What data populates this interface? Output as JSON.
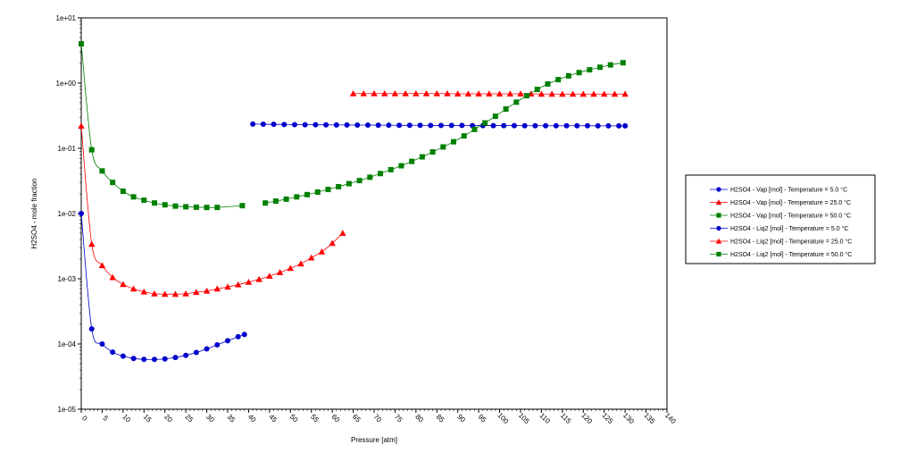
{
  "chart_data": {
    "type": "line",
    "xlabel": "Pressure [atm]",
    "ylabel": "H2SO4 - mole fraction",
    "yscale": "log",
    "xlim": [
      0,
      140
    ],
    "ylim": [
      1e-05,
      10
    ],
    "x_ticks": [
      "0",
      "5",
      "10",
      "15",
      "20",
      "25",
      "30",
      "35",
      "40",
      "45",
      "50",
      "55",
      "60",
      "65",
      "70",
      "75",
      "80",
      "85",
      "90",
      "95",
      "100",
      "105",
      "110",
      "115",
      "120",
      "125",
      "130",
      "135",
      "140"
    ],
    "y_ticks": [
      "1e-05",
      "1e-04",
      "1e-03",
      "1e-02",
      "1e-01",
      "1e+00",
      "1e+01"
    ],
    "grid": false,
    "legend_position": "right",
    "series": [
      {
        "name": "H2SO4 - Vap [mol] - Temperature = 5.0 °C",
        "color": "#0000cc",
        "marker": "circle",
        "x": [
          0,
          2.5,
          5,
          7.5,
          10,
          12.5,
          15,
          17.5,
          20,
          22.5,
          25,
          27.5,
          30,
          32.5,
          35,
          37.5,
          39
        ],
        "y": [
          0.01,
          0.00017,
          0.0001,
          7.5e-05,
          6.5e-05,
          6e-05,
          5.8e-05,
          5.8e-05,
          5.9e-05,
          6.2e-05,
          6.7e-05,
          7.4e-05,
          8.4e-05,
          9.7e-05,
          0.000112,
          0.000129,
          0.00014
        ]
      },
      {
        "name": "H2SO4 - Vap [mol] - Temperature = 25.0 °C",
        "color": "#ff0000",
        "marker": "triangle",
        "x": [
          0,
          2.5,
          5,
          7.5,
          10,
          12.5,
          15,
          17.5,
          20,
          22.5,
          25,
          27.5,
          30,
          32.5,
          35,
          37.5,
          40,
          42.5,
          45,
          47.5,
          50,
          52.5,
          55,
          57.5,
          60,
          62.5
        ],
        "y": [
          0.22,
          0.0034,
          0.0016,
          0.00105,
          0.00082,
          0.0007,
          0.00063,
          0.00059,
          0.00058,
          0.00058,
          0.00059,
          0.00062,
          0.00065,
          0.0007,
          0.00075,
          0.00081,
          0.00089,
          0.00098,
          0.0011,
          0.00125,
          0.00145,
          0.0017,
          0.0021,
          0.0026,
          0.0035,
          0.005
        ]
      },
      {
        "name": "H2SO4 - Vap [mol] - Temperature = 50.0 °C",
        "color": "#008000",
        "marker": "square",
        "x": [
          0,
          2.5,
          5,
          7.5,
          10,
          12.5,
          15,
          17.5,
          20,
          22.5,
          25,
          27.5,
          30,
          32.5,
          38.5
        ],
        "y": [
          4.0,
          0.095,
          0.045,
          0.03,
          0.022,
          0.018,
          0.016,
          0.0145,
          0.0136,
          0.013,
          0.0127,
          0.0125,
          0.0124,
          0.0124,
          0.0132
        ]
      },
      {
        "name": "H2SO4 - Liq2 [mol] - Temperature = 5.0 °C",
        "color": "#0000cc",
        "marker": "circle",
        "x": [
          41,
          43.5,
          46,
          48.5,
          51,
          53.5,
          56,
          58.5,
          61,
          63.5,
          66,
          68.5,
          71,
          73.5,
          76,
          78.5,
          81,
          83.5,
          86,
          88.5,
          91,
          93.5,
          96,
          98.5,
          101,
          103.5,
          106,
          108.5,
          111,
          113.5,
          116,
          118.5,
          121,
          123.5,
          126,
          128.5,
          130
        ],
        "y": [
          0.235,
          0.234,
          0.233,
          0.232,
          0.231,
          0.23,
          0.23,
          0.229,
          0.228,
          0.228,
          0.227,
          0.227,
          0.226,
          0.226,
          0.225,
          0.225,
          0.225,
          0.224,
          0.224,
          0.224,
          0.224,
          0.223,
          0.223,
          0.223,
          0.223,
          0.223,
          0.222,
          0.222,
          0.222,
          0.222,
          0.222,
          0.222,
          0.222,
          0.221,
          0.221,
          0.221,
          0.221
        ]
      },
      {
        "name": "H2SO4 - Liq2 [mol] - Temperature = 25.0 °C",
        "color": "#ff0000",
        "marker": "triangle",
        "x": [
          65,
          67.5,
          70,
          72.5,
          75,
          77.5,
          80,
          82.5,
          85,
          87.5,
          90,
          92.5,
          95,
          97.5,
          100,
          102.5,
          105,
          107.5,
          110,
          112.5,
          115,
          117.5,
          120,
          122.5,
          125,
          127.5,
          130
        ],
        "y": [
          0.69,
          0.69,
          0.69,
          0.69,
          0.69,
          0.69,
          0.69,
          0.69,
          0.69,
          0.69,
          0.685,
          0.685,
          0.685,
          0.685,
          0.685,
          0.685,
          0.685,
          0.685,
          0.68,
          0.68,
          0.68,
          0.68,
          0.68,
          0.68,
          0.68,
          0.68,
          0.68
        ]
      },
      {
        "name": "H2SO4 - Liq2 [mol] - Temperature = 50.0 °C",
        "color": "#008000",
        "marker": "square",
        "x": [
          44,
          46.5,
          49,
          51.5,
          54,
          56.5,
          59,
          61.5,
          64,
          66.5,
          69,
          71.5,
          74,
          76.5,
          79,
          81.5,
          84,
          86.5,
          89,
          91.5,
          94,
          96.5,
          99,
          101.5,
          104,
          106.5,
          109,
          111.5,
          114,
          116.5,
          119,
          121.5,
          124,
          126.5,
          129.5
        ],
        "y": [
          0.0145,
          0.0155,
          0.0166,
          0.018,
          0.0195,
          0.0213,
          0.0234,
          0.0258,
          0.0287,
          0.032,
          0.036,
          0.041,
          0.047,
          0.054,
          0.063,
          0.074,
          0.088,
          0.105,
          0.126,
          0.155,
          0.195,
          0.245,
          0.31,
          0.4,
          0.51,
          0.64,
          0.8,
          0.97,
          1.13,
          1.29,
          1.45,
          1.6,
          1.75,
          1.9,
          2.05
        ]
      }
    ]
  }
}
